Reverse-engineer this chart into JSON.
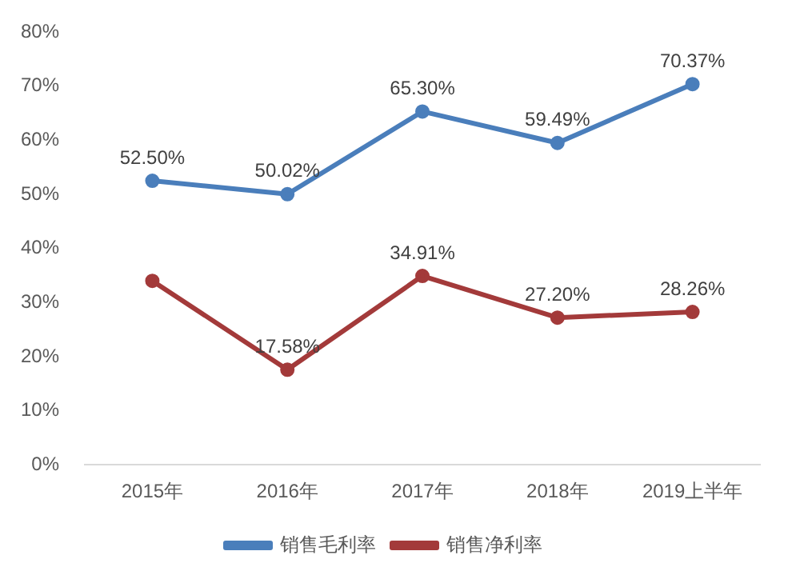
{
  "chart_data": {
    "type": "line",
    "categories": [
      "2015年",
      "2016年",
      "2017年",
      "2018年",
      "2019上半年"
    ],
    "series": [
      {
        "name": "销售毛利率",
        "color": "#4a7ebb",
        "values": [
          52.5,
          50.02,
          65.3,
          59.49,
          70.37
        ],
        "value_labels": [
          "52.50%",
          "50.02%",
          "65.30%",
          "59.49%",
          "70.37%"
        ]
      },
      {
        "name": "销售净利率",
        "color": "#a33a3a",
        "values": [
          34,
          17.58,
          34.91,
          27.2,
          28.26
        ],
        "value_labels": [
          null,
          "17.58%",
          "34.91%",
          "27.20%",
          "28.26%"
        ]
      }
    ],
    "ylim": [
      0,
      80
    ],
    "yticks": [
      {
        "value": 0,
        "label": "0%"
      },
      {
        "value": 10,
        "label": "10%"
      },
      {
        "value": 20,
        "label": "20%"
      },
      {
        "value": 30,
        "label": "30%"
      },
      {
        "value": 40,
        "label": "40%"
      },
      {
        "value": 50,
        "label": "50%"
      },
      {
        "value": 60,
        "label": "60%"
      },
      {
        "value": 70,
        "label": "70%"
      },
      {
        "value": 80,
        "label": "80%"
      }
    ],
    "grid": false,
    "legend": "bottom",
    "marker": "circle",
    "line_style": "solid"
  }
}
